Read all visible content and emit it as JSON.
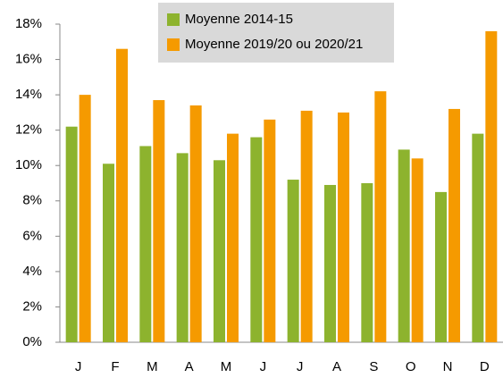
{
  "chart_data": {
    "type": "bar",
    "categories": [
      "J",
      "F",
      "M",
      "A",
      "M",
      "J",
      "J",
      "A",
      "S",
      "O",
      "N",
      "D"
    ],
    "series": [
      {
        "name": "Moyenne 2014-15",
        "color": "#8db32e",
        "values": [
          12.2,
          10.1,
          11.1,
          10.7,
          10.3,
          11.6,
          9.2,
          8.9,
          9.0,
          10.9,
          8.5,
          11.8
        ]
      },
      {
        "name": "Moyenne 2019/20 ou 2020/21",
        "color": "#f59a00",
        "values": [
          14.0,
          16.6,
          13.7,
          13.4,
          11.8,
          12.6,
          13.1,
          13.0,
          14.2,
          10.4,
          13.2,
          17.6
        ]
      }
    ],
    "ylim": [
      0,
      18
    ],
    "yticks": [
      {
        "value": 0,
        "label": "0%"
      },
      {
        "value": 2,
        "label": "2%"
      },
      {
        "value": 4,
        "label": "4%"
      },
      {
        "value": 6,
        "label": "6%"
      },
      {
        "value": 8,
        "label": "8%"
      },
      {
        "value": 10,
        "label": "10%"
      },
      {
        "value": 12,
        "label": "12%"
      },
      {
        "value": 14,
        "label": "14%"
      },
      {
        "value": 16,
        "label": "16%"
      },
      {
        "value": 18,
        "label": "18%"
      }
    ],
    "grid": false,
    "legend": "top"
  }
}
